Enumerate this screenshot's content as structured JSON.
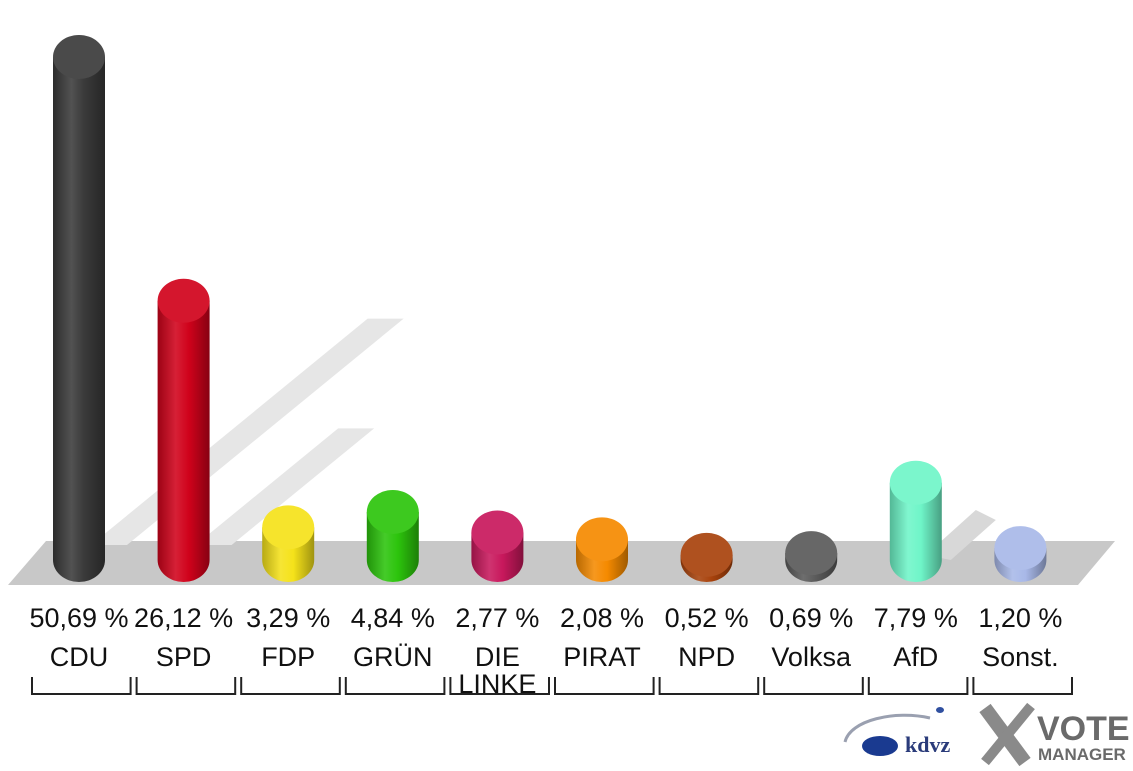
{
  "chart_data": {
    "type": "bar",
    "categories": [
      "CDU",
      "SPD",
      "FDP",
      "GRÜN",
      "DIE LINKE",
      "PIRAT",
      "NPD",
      "Volksa",
      "AfD",
      "Sonst."
    ],
    "category_lines": [
      [
        "CDU"
      ],
      [
        "SPD"
      ],
      [
        "FDP"
      ],
      [
        "GRÜN"
      ],
      [
        "DIE",
        "LINKE"
      ],
      [
        "PIRAT"
      ],
      [
        "NPD"
      ],
      [
        "Volksa"
      ],
      [
        "AfD"
      ],
      [
        "Sonst."
      ]
    ],
    "values": [
      50.69,
      26.12,
      3.29,
      4.84,
      2.77,
      2.08,
      0.52,
      0.69,
      7.79,
      1.2
    ],
    "value_labels": [
      "50,69 %",
      "26,12 %",
      "3,29 %",
      "4,84 %",
      "2,77 %",
      "2,08 %",
      "0,52 %",
      "0,69 %",
      "7,79 %",
      "1,20 %"
    ],
    "colors": [
      "#3a3a3a",
      "#d0021b",
      "#f5e21a",
      "#2cc40c",
      "#c8185c",
      "#f58a00",
      "#a8420c",
      "#5a5a5a",
      "#6ff5c8",
      "#a8b8e8"
    ],
    "ylim": [
      0,
      50.69
    ],
    "grid": false,
    "legend": "none"
  },
  "branding": {
    "kdvz_text": "kdvz",
    "vote_text": "VOTE",
    "manager_text": "MANAGER"
  }
}
